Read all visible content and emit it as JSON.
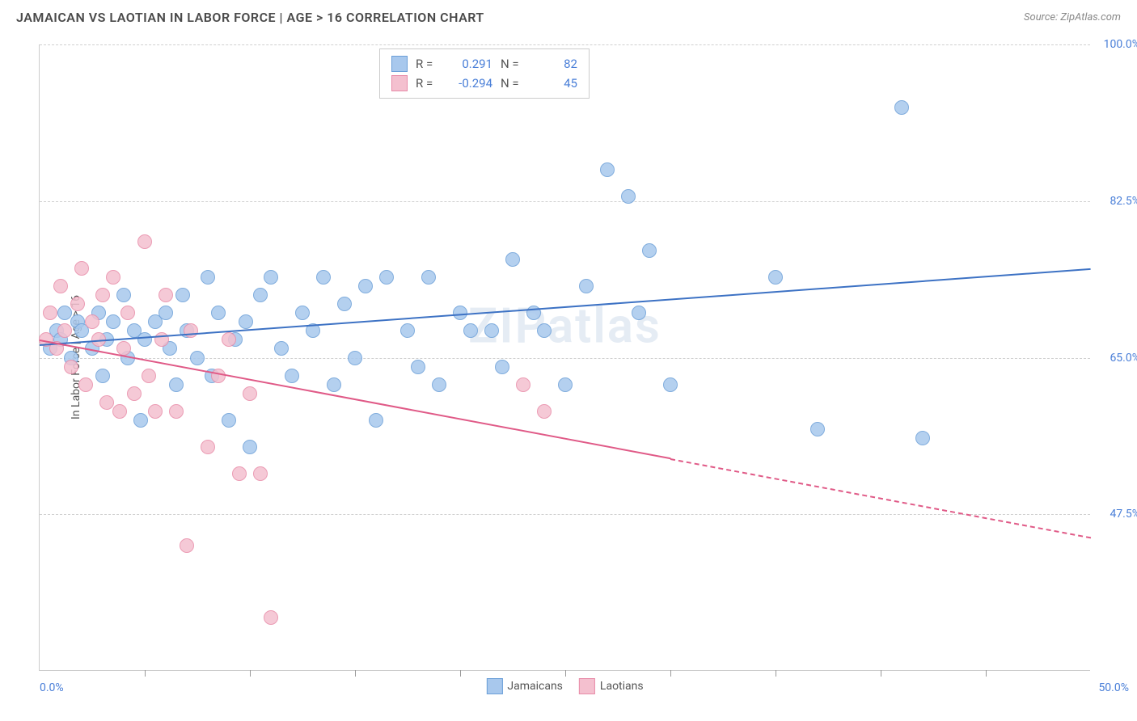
{
  "header": {
    "title": "JAMAICAN VS LAOTIAN IN LABOR FORCE | AGE > 16 CORRELATION CHART",
    "source": "Source: ZipAtlas.com"
  },
  "chart": {
    "type": "scatter",
    "ylabel": "In Labor Force | Age > 16",
    "watermark": "ZIPatlas",
    "xlim": [
      0,
      50
    ],
    "ylim": [
      30,
      100
    ],
    "x_min_label": "0.0%",
    "x_max_label": "50.0%",
    "y_ticks": [
      47.5,
      65.0,
      82.5,
      100.0
    ],
    "y_tick_labels": [
      "47.5%",
      "65.0%",
      "82.5%",
      "100.0%"
    ],
    "x_tick_positions": [
      5,
      10,
      15,
      20,
      25,
      30,
      35,
      40,
      45
    ],
    "gridline_color": "#d0d0d0",
    "background_color": "#ffffff",
    "series": [
      {
        "name": "Jamaicans",
        "color_fill": "#a8c8ed",
        "color_stroke": "#6b9fd8",
        "trend_color": "#3d72c4",
        "trend_start": [
          0,
          66.5
        ],
        "trend_end": [
          50,
          75.0
        ],
        "trend_dash_from": null,
        "R": "0.291",
        "N": "82",
        "marker_radius": 9,
        "points": [
          [
            0.5,
            66
          ],
          [
            0.8,
            68
          ],
          [
            1.0,
            67
          ],
          [
            1.2,
            70
          ],
          [
            1.5,
            65
          ],
          [
            1.8,
            69
          ],
          [
            2.0,
            68
          ],
          [
            2.5,
            66
          ],
          [
            2.8,
            70
          ],
          [
            3.0,
            63
          ],
          [
            3.2,
            67
          ],
          [
            3.5,
            69
          ],
          [
            4.0,
            72
          ],
          [
            4.2,
            65
          ],
          [
            4.5,
            68
          ],
          [
            4.8,
            58
          ],
          [
            5.0,
            67
          ],
          [
            5.5,
            69
          ],
          [
            6.0,
            70
          ],
          [
            6.2,
            66
          ],
          [
            6.5,
            62
          ],
          [
            6.8,
            72
          ],
          [
            7.0,
            68
          ],
          [
            7.5,
            65
          ],
          [
            8.0,
            74
          ],
          [
            8.2,
            63
          ],
          [
            8.5,
            70
          ],
          [
            9.0,
            58
          ],
          [
            9.3,
            67
          ],
          [
            9.8,
            69
          ],
          [
            10.0,
            55
          ],
          [
            10.5,
            72
          ],
          [
            11.0,
            74
          ],
          [
            11.5,
            66
          ],
          [
            12.0,
            63
          ],
          [
            12.5,
            70
          ],
          [
            13.0,
            68
          ],
          [
            13.5,
            74
          ],
          [
            14.0,
            62
          ],
          [
            14.5,
            71
          ],
          [
            15.0,
            65
          ],
          [
            15.5,
            73
          ],
          [
            16.0,
            58
          ],
          [
            16.5,
            74
          ],
          [
            17.5,
            68
          ],
          [
            18.0,
            64
          ],
          [
            18.5,
            74
          ],
          [
            19.0,
            62
          ],
          [
            20.0,
            70
          ],
          [
            20.5,
            68
          ],
          [
            21.5,
            68
          ],
          [
            22.0,
            64
          ],
          [
            22.5,
            76
          ],
          [
            23.5,
            70
          ],
          [
            24.0,
            68
          ],
          [
            25.0,
            62
          ],
          [
            26.0,
            73
          ],
          [
            27.0,
            86
          ],
          [
            28.0,
            83
          ],
          [
            28.5,
            70
          ],
          [
            29.0,
            77
          ],
          [
            30.0,
            62
          ],
          [
            35.0,
            74
          ],
          [
            37.0,
            57
          ],
          [
            41.0,
            93
          ],
          [
            42.0,
            56
          ]
        ]
      },
      {
        "name": "Laotians",
        "color_fill": "#f4c0cf",
        "color_stroke": "#e88ba8",
        "trend_color": "#e05a87",
        "trend_start": [
          0,
          67.0
        ],
        "trend_end": [
          50,
          45.0
        ],
        "trend_dash_from": 30,
        "R": "-0.294",
        "N": "45",
        "marker_radius": 9,
        "points": [
          [
            0.3,
            67
          ],
          [
            0.5,
            70
          ],
          [
            0.8,
            66
          ],
          [
            1.0,
            73
          ],
          [
            1.2,
            68
          ],
          [
            1.5,
            64
          ],
          [
            1.8,
            71
          ],
          [
            2.0,
            75
          ],
          [
            2.2,
            62
          ],
          [
            2.5,
            69
          ],
          [
            2.8,
            67
          ],
          [
            3.0,
            72
          ],
          [
            3.2,
            60
          ],
          [
            3.5,
            74
          ],
          [
            3.8,
            59
          ],
          [
            4.0,
            66
          ],
          [
            4.2,
            70
          ],
          [
            4.5,
            61
          ],
          [
            5.0,
            78
          ],
          [
            5.2,
            63
          ],
          [
            5.5,
            59
          ],
          [
            5.8,
            67
          ],
          [
            6.0,
            72
          ],
          [
            6.5,
            59
          ],
          [
            7.0,
            44
          ],
          [
            7.2,
            68
          ],
          [
            8.0,
            55
          ],
          [
            8.5,
            63
          ],
          [
            9.0,
            67
          ],
          [
            9.5,
            52
          ],
          [
            10.0,
            61
          ],
          [
            10.5,
            52
          ],
          [
            11.0,
            36
          ],
          [
            23.0,
            62
          ],
          [
            24.0,
            59
          ]
        ]
      }
    ],
    "legend": {
      "s1_label": "Jamaicans",
      "s2_label": "Laotians"
    }
  }
}
